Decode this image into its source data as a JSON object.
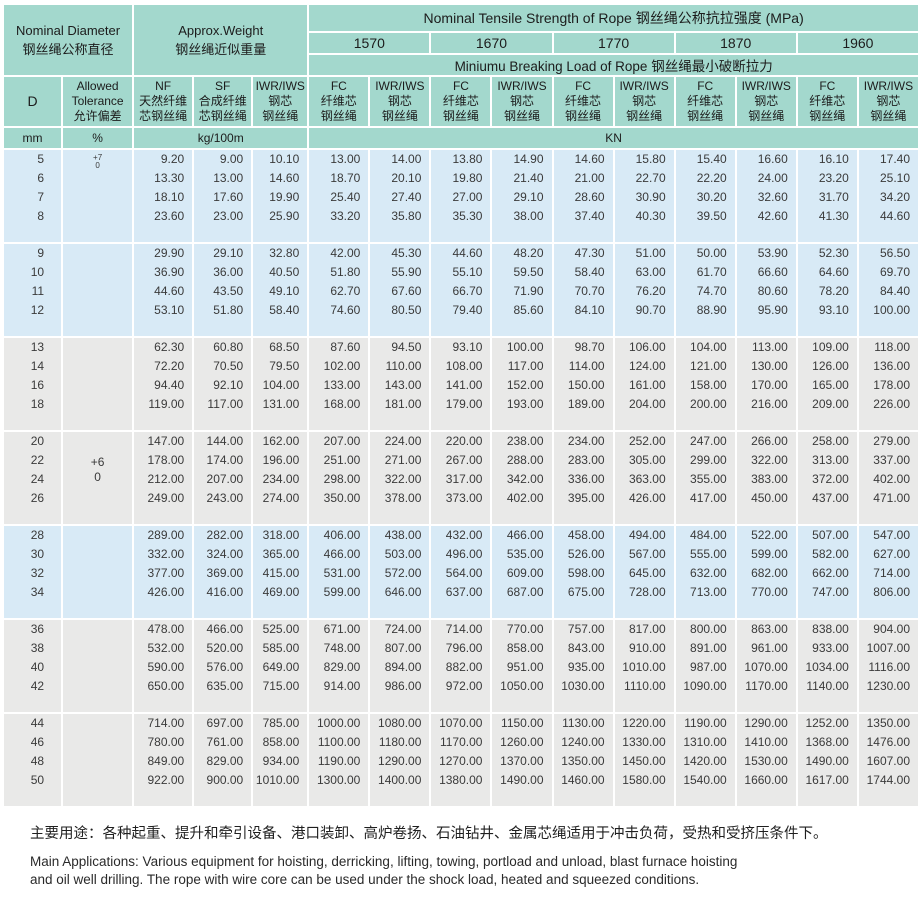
{
  "header": {
    "nominal_diameter": {
      "en": "Nominal Diameter",
      "zh": "钢丝绳公称直径"
    },
    "approx_weight": {
      "en": "Approx.Weight",
      "zh": "钢丝绳近似重量"
    },
    "tensile_strength": {
      "en": "Nominal Tensile Strength of Rope",
      "zh": "钢丝绳公称抗拉强度",
      "unit": "(MPa)"
    },
    "strength_grades": [
      "1570",
      "1670",
      "1770",
      "1870",
      "1960"
    ],
    "breaking_load": {
      "en": "Miniumu Breaking Load of Rope",
      "zh": "钢丝绳最小破断拉力"
    },
    "columns": {
      "d": "D",
      "tolerance": {
        "l1": "Allowed",
        "l2": "Tolerance",
        "l3": "允许偏差"
      },
      "nf": {
        "l1": "NF",
        "l2": "天然纤维",
        "l3": "芯钢丝绳"
      },
      "sf": {
        "l1": "SF",
        "l2": "合成纤维",
        "l3": "芯钢丝绳"
      },
      "iwr": {
        "l1": "IWR/IWS",
        "l2": "钢芯",
        "l3": "钢丝绳"
      },
      "fc": {
        "l1": "FC",
        "l2": "纤维芯",
        "l3": "钢丝绳"
      }
    },
    "units": {
      "diameter": "mm",
      "tolerance": "%",
      "weight": "kg/100m",
      "load": "KN"
    }
  },
  "colors": {
    "header_teal": "#a3d8cd",
    "band_blue": "#d8eaf6",
    "band_gray": "#e9e9e8",
    "grid_white": "#ffffff"
  },
  "table": {
    "groups": [
      {
        "band": "blue",
        "tolerance": {
          "upper": "+7",
          "lower": "0",
          "style": "top-small"
        },
        "rows": [
          {
            "d": "5",
            "values": [
              "9.20",
              "9.00",
              "10.10",
              "13.00",
              "14.00",
              "13.80",
              "14.90",
              "14.60",
              "15.80",
              "15.40",
              "16.60",
              "16.10",
              "17.40"
            ]
          },
          {
            "d": "6",
            "values": [
              "13.30",
              "13.00",
              "14.60",
              "18.70",
              "20.10",
              "19.80",
              "21.40",
              "21.00",
              "22.70",
              "22.20",
              "24.00",
              "23.20",
              "25.10"
            ]
          },
          {
            "d": "7",
            "values": [
              "18.10",
              "17.60",
              "19.90",
              "25.40",
              "27.40",
              "27.00",
              "29.10",
              "28.60",
              "30.90",
              "30.20",
              "32.60",
              "31.70",
              "34.20"
            ]
          },
          {
            "d": "8",
            "values": [
              "23.60",
              "23.00",
              "25.90",
              "33.20",
              "35.80",
              "35.30",
              "38.00",
              "37.40",
              "40.30",
              "39.50",
              "42.60",
              "41.30",
              "44.60"
            ]
          }
        ]
      },
      {
        "band": "blue",
        "tolerance": null,
        "rows": [
          {
            "d": "9",
            "values": [
              "29.90",
              "29.10",
              "32.80",
              "42.00",
              "45.30",
              "44.60",
              "48.20",
              "47.30",
              "51.00",
              "50.00",
              "53.90",
              "52.30",
              "56.50"
            ]
          },
          {
            "d": "10",
            "values": [
              "36.90",
              "36.00",
              "40.50",
              "51.80",
              "55.90",
              "55.10",
              "59.50",
              "58.40",
              "63.00",
              "61.70",
              "66.60",
              "64.60",
              "69.70"
            ]
          },
          {
            "d": "11",
            "values": [
              "44.60",
              "43.50",
              "49.10",
              "62.70",
              "67.60",
              "66.70",
              "71.90",
              "70.70",
              "76.20",
              "74.70",
              "80.60",
              "78.20",
              "84.40"
            ]
          },
          {
            "d": "12",
            "values": [
              "53.10",
              "51.80",
              "58.40",
              "74.60",
              "80.50",
              "79.40",
              "85.60",
              "84.10",
              "90.70",
              "88.90",
              "95.90",
              "93.10",
              "100.00"
            ]
          }
        ]
      },
      {
        "band": "gray",
        "tolerance": null,
        "rows": [
          {
            "d": "13",
            "values": [
              "62.30",
              "60.80",
              "68.50",
              "87.60",
              "94.50",
              "93.10",
              "100.00",
              "98.70",
              "106.00",
              "104.00",
              "113.00",
              "109.00",
              "118.00"
            ]
          },
          {
            "d": "14",
            "values": [
              "72.20",
              "70.50",
              "79.50",
              "102.00",
              "110.00",
              "108.00",
              "117.00",
              "114.00",
              "124.00",
              "121.00",
              "130.00",
              "126.00",
              "136.00"
            ]
          },
          {
            "d": "16",
            "values": [
              "94.40",
              "92.10",
              "104.00",
              "133.00",
              "143.00",
              "141.00",
              "152.00",
              "150.00",
              "161.00",
              "158.00",
              "170.00",
              "165.00",
              "178.00"
            ]
          },
          {
            "d": "18",
            "values": [
              "119.00",
              "117.00",
              "131.00",
              "168.00",
              "181.00",
              "179.00",
              "193.00",
              "189.00",
              "204.00",
              "200.00",
              "216.00",
              "209.00",
              "226.00"
            ]
          }
        ]
      },
      {
        "band": "gray",
        "tolerance": {
          "upper": "+6",
          "lower": "0",
          "style": "center"
        },
        "rows": [
          {
            "d": "20",
            "values": [
              "147.00",
              "144.00",
              "162.00",
              "207.00",
              "224.00",
              "220.00",
              "238.00",
              "234.00",
              "252.00",
              "247.00",
              "266.00",
              "258.00",
              "279.00"
            ]
          },
          {
            "d": "22",
            "values": [
              "178.00",
              "174.00",
              "196.00",
              "251.00",
              "271.00",
              "267.00",
              "288.00",
              "283.00",
              "305.00",
              "299.00",
              "322.00",
              "313.00",
              "337.00"
            ]
          },
          {
            "d": "24",
            "values": [
              "212.00",
              "207.00",
              "234.00",
              "298.00",
              "322.00",
              "317.00",
              "342.00",
              "336.00",
              "363.00",
              "355.00",
              "383.00",
              "372.00",
              "402.00"
            ]
          },
          {
            "d": "26",
            "values": [
              "249.00",
              "243.00",
              "274.00",
              "350.00",
              "378.00",
              "373.00",
              "402.00",
              "395.00",
              "426.00",
              "417.00",
              "450.00",
              "437.00",
              "471.00"
            ]
          }
        ]
      },
      {
        "band": "blue",
        "tolerance": null,
        "rows": [
          {
            "d": "28",
            "values": [
              "289.00",
              "282.00",
              "318.00",
              "406.00",
              "438.00",
              "432.00",
              "466.00",
              "458.00",
              "494.00",
              "484.00",
              "522.00",
              "507.00",
              "547.00"
            ]
          },
          {
            "d": "30",
            "values": [
              "332.00",
              "324.00",
              "365.00",
              "466.00",
              "503.00",
              "496.00",
              "535.00",
              "526.00",
              "567.00",
              "555.00",
              "599.00",
              "582.00",
              "627.00"
            ]
          },
          {
            "d": "32",
            "values": [
              "377.00",
              "369.00",
              "415.00",
              "531.00",
              "572.00",
              "564.00",
              "609.00",
              "598.00",
              "645.00",
              "632.00",
              "682.00",
              "662.00",
              "714.00"
            ]
          },
          {
            "d": "34",
            "values": [
              "426.00",
              "416.00",
              "469.00",
              "599.00",
              "646.00",
              "637.00",
              "687.00",
              "675.00",
              "728.00",
              "713.00",
              "770.00",
              "747.00",
              "806.00"
            ]
          }
        ]
      },
      {
        "band": "gray",
        "tolerance": null,
        "rows": [
          {
            "d": "36",
            "values": [
              "478.00",
              "466.00",
              "525.00",
              "671.00",
              "724.00",
              "714.00",
              "770.00",
              "757.00",
              "817.00",
              "800.00",
              "863.00",
              "838.00",
              "904.00"
            ]
          },
          {
            "d": "38",
            "values": [
              "532.00",
              "520.00",
              "585.00",
              "748.00",
              "807.00",
              "796.00",
              "858.00",
              "843.00",
              "910.00",
              "891.00",
              "961.00",
              "933.00",
              "1007.00"
            ]
          },
          {
            "d": "40",
            "values": [
              "590.00",
              "576.00",
              "649.00",
              "829.00",
              "894.00",
              "882.00",
              "951.00",
              "935.00",
              "1010.00",
              "987.00",
              "1070.00",
              "1034.00",
              "1116.00"
            ]
          },
          {
            "d": "42",
            "values": [
              "650.00",
              "635.00",
              "715.00",
              "914.00",
              "986.00",
              "972.00",
              "1050.00",
              "1030.00",
              "1110.00",
              "1090.00",
              "1170.00",
              "1140.00",
              "1230.00"
            ]
          }
        ]
      },
      {
        "band": "gray",
        "tolerance": null,
        "rows": [
          {
            "d": "44",
            "values": [
              "714.00",
              "697.00",
              "785.00",
              "1000.00",
              "1080.00",
              "1070.00",
              "1150.00",
              "1130.00",
              "1220.00",
              "1190.00",
              "1290.00",
              "1252.00",
              "1350.00"
            ]
          },
          {
            "d": "46",
            "values": [
              "780.00",
              "761.00",
              "858.00",
              "1100.00",
              "1180.00",
              "1170.00",
              "1260.00",
              "1240.00",
              "1330.00",
              "1310.00",
              "1410.00",
              "1368.00",
              "1476.00"
            ]
          },
          {
            "d": "48",
            "values": [
              "849.00",
              "829.00",
              "934.00",
              "1190.00",
              "1290.00",
              "1270.00",
              "1370.00",
              "1350.00",
              "1450.00",
              "1420.00",
              "1530.00",
              "1490.00",
              "1607.00"
            ]
          },
          {
            "d": "50",
            "values": [
              "922.00",
              "900.00",
              "1010.00",
              "1300.00",
              "1400.00",
              "1380.00",
              "1490.00",
              "1460.00",
              "1580.00",
              "1540.00",
              "1660.00",
              "1617.00",
              "1744.00"
            ]
          }
        ]
      }
    ]
  },
  "footer": {
    "zh": "主要用途：各种起重、提升和牵引设备、港口装卸、高炉卷扬、石油钻井、金属芯绳适用于冲击负荷，受热和受挤压条件下。",
    "en_line1": "Main Applications: Various equipment for hoisting, derricking, lifting, towing, portload and unload, blast furnace hoisting",
    "en_line2": "and oil well drilling. The rope with wire core can be used under the shock load, heated and squeezed conditions."
  }
}
